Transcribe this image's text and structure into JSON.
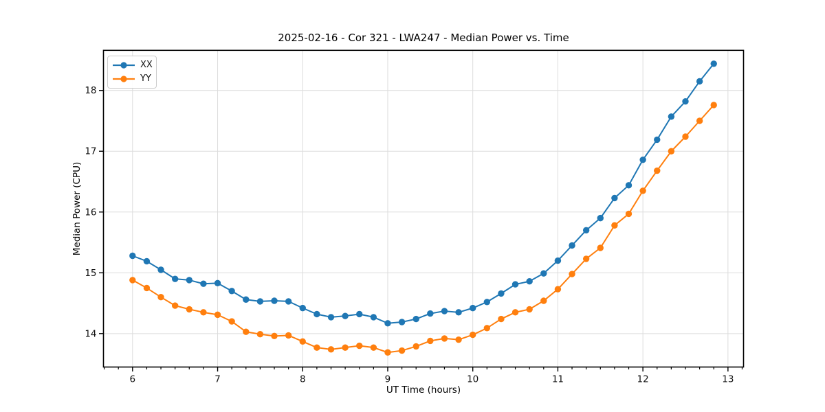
{
  "chart_data": {
    "type": "line",
    "title": "2025-02-16 - Cor 321 - LWA247 - Median Power vs. Time",
    "xlabel": "UT Time (hours)",
    "ylabel": "Median Power (CPU)",
    "xlim": [
      5.658,
      13.183
    ],
    "ylim": [
      13.45,
      18.66
    ],
    "x_ticks": [
      6,
      7,
      8,
      9,
      10,
      11,
      12,
      13
    ],
    "y_ticks": [
      14,
      15,
      16,
      17,
      18
    ],
    "x_minor_ticks_per_hour": 6,
    "grid": true,
    "legend_position": "upper left",
    "x": [
      6.0,
      6.1667,
      6.3333,
      6.5,
      6.6667,
      6.8333,
      7.0,
      7.1667,
      7.3333,
      7.5,
      7.6667,
      7.8333,
      8.0,
      8.1667,
      8.3333,
      8.5,
      8.6667,
      8.8333,
      9.0,
      9.1667,
      9.3333,
      9.5,
      9.6667,
      9.8333,
      10.0,
      10.1667,
      10.3333,
      10.5,
      10.6667,
      10.8333,
      11.0,
      11.1667,
      11.3333,
      11.5,
      11.6667,
      11.8333,
      12.0,
      12.1667,
      12.3333,
      12.5,
      12.6667,
      12.8333
    ],
    "series": [
      {
        "name": "XX",
        "color": "#1f77b4",
        "values": [
          15.28,
          15.19,
          15.05,
          14.9,
          14.88,
          14.82,
          14.83,
          14.7,
          14.56,
          14.53,
          14.54,
          14.53,
          14.42,
          14.32,
          14.27,
          14.29,
          14.32,
          14.27,
          14.17,
          14.19,
          14.24,
          14.33,
          14.37,
          14.35,
          14.42,
          14.52,
          14.66,
          14.81,
          14.86,
          14.99,
          15.2,
          15.45,
          15.7,
          15.9,
          16.23,
          16.44,
          16.86,
          17.19,
          17.57,
          17.82,
          18.15,
          18.44
        ]
      },
      {
        "name": "YY",
        "color": "#ff7f0e",
        "values": [
          14.88,
          14.75,
          14.6,
          14.46,
          14.4,
          14.35,
          14.31,
          14.2,
          14.03,
          13.99,
          13.96,
          13.97,
          13.87,
          13.77,
          13.74,
          13.77,
          13.8,
          13.77,
          13.69,
          13.72,
          13.79,
          13.88,
          13.92,
          13.9,
          13.98,
          14.09,
          14.24,
          14.35,
          14.4,
          14.54,
          14.73,
          14.98,
          15.23,
          15.41,
          15.78,
          15.97,
          16.35,
          16.68,
          17.0,
          17.24,
          17.5,
          17.76
        ]
      }
    ],
    "style": {
      "grid_color": "#dcdcdc",
      "spine_color": "#000000",
      "tick_color": "#000000",
      "text_color": "#111111",
      "background": "#ffffff"
    }
  }
}
